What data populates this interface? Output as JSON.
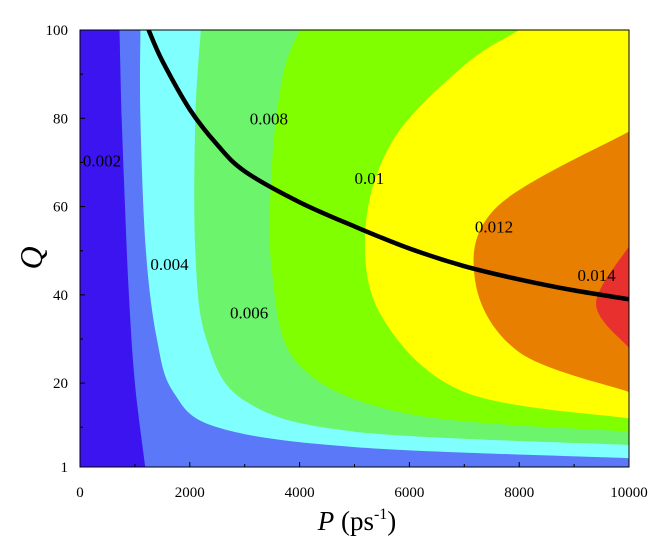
{
  "chart_data": {
    "type": "contour",
    "xlabel": {
      "symbol": "P",
      "unit": " (ps",
      "exp": "-1",
      "close": ")"
    },
    "ylabel": "Q",
    "xlim": [
      0,
      10000
    ],
    "ylim": [
      1,
      100
    ],
    "x_ticks": [
      "0",
      "2000",
      "4000",
      "6000",
      "8000",
      "10000"
    ],
    "x_tick_values": [
      0,
      2000,
      4000,
      6000,
      8000,
      10000
    ],
    "y_ticks": [
      "1",
      "20",
      "40",
      "60",
      "80",
      "100"
    ],
    "y_tick_values": [
      1,
      20,
      40,
      60,
      80,
      100
    ],
    "levels": [
      {
        "label": "0.002",
        "color": "#3c14f0",
        "label_at": [
          400,
          70
        ]
      },
      {
        "label": "0.004",
        "color": "#5a78f8",
        "label_at": [
          1630,
          46.5
        ]
      },
      {
        "label": "0.006",
        "color": "#80ffff",
        "label_at": [
          3080,
          35.5
        ]
      },
      {
        "label": "0.008",
        "color": "#6cf56c",
        "label_at": [
          3440,
          79.5
        ]
      },
      {
        "label": "0.01",
        "color": "#80ff00",
        "label_at": [
          5270,
          66
        ]
      },
      {
        "label": "0.012",
        "color": "#ffff00",
        "label_at": [
          7540,
          55
        ]
      },
      {
        "label": "0.014",
        "color": "#e87f00",
        "label_at": [
          9410,
          44
        ]
      }
    ],
    "top_region_color": "#e8302f",
    "band_boundaries": [
      [
        [
          1190,
          1
        ],
        [
          1000,
          20
        ],
        [
          890,
          40
        ],
        [
          820,
          60
        ],
        [
          760,
          80
        ],
        [
          720,
          100
        ]
      ],
      [
        [
          10000,
          3
        ],
        [
          5000,
          5.5
        ],
        [
          2500,
          10
        ],
        [
          1700,
          18
        ],
        [
          1400,
          30
        ],
        [
          1200,
          50
        ],
        [
          1100,
          80
        ],
        [
          1100,
          100
        ]
      ],
      [
        [
          10000,
          6
        ],
        [
          5000,
          9
        ],
        [
          3000,
          16
        ],
        [
          2300,
          30
        ],
        [
          2100,
          50
        ],
        [
          2100,
          80
        ],
        [
          2200,
          100
        ]
      ],
      [
        [
          10000,
          9
        ],
        [
          6000,
          13
        ],
        [
          4000,
          24
        ],
        [
          3500,
          45
        ],
        [
          3500,
          70
        ],
        [
          3700,
          90
        ],
        [
          4000,
          100
        ]
      ],
      [
        [
          10000,
          12
        ],
        [
          7000,
          18
        ],
        [
          5500,
          35
        ],
        [
          5200,
          55
        ],
        [
          5700,
          75
        ],
        [
          7000,
          92
        ],
        [
          8000,
          100
        ]
      ],
      [
        [
          10000,
          18
        ],
        [
          8000,
          27
        ],
        [
          7200,
          43
        ],
        [
          7600,
          60
        ],
        [
          10000,
          77
        ]
      ],
      [
        [
          10000,
          28
        ],
        [
          9400,
          38
        ],
        [
          10000,
          51
        ]
      ]
    ],
    "series": [
      {
        "style": "thick-black-line",
        "x": [
          1250,
          1500,
          2000,
          2500,
          3000,
          4000,
          5000,
          6000,
          7000,
          8000,
          9000,
          10000
        ],
        "y": [
          100,
          93,
          82,
          74,
          68,
          61,
          55.5,
          50.5,
          46.5,
          43.5,
          41,
          39
        ]
      }
    ]
  }
}
